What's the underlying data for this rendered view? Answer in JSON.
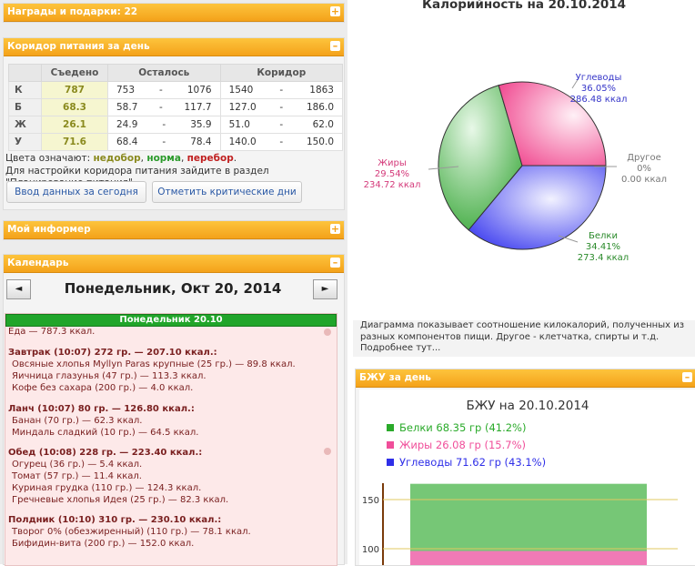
{
  "left": {
    "awards": {
      "title": "Награды и подарки: 22",
      "btn": "+"
    },
    "corridor": {
      "title": "Коридор питания за день",
      "btn": "–",
      "headers": [
        "Съедено",
        "Осталось",
        "Коридор"
      ],
      "rows": [
        {
          "label": "К",
          "eaten": "787",
          "left_min": "753",
          "left_max": "1076",
          "corr_min": "1540",
          "corr_max": "1863"
        },
        {
          "label": "Б",
          "eaten": "68.3",
          "left_min": "58.7",
          "left_max": "117.7",
          "corr_min": "127.0",
          "corr_max": "186.0"
        },
        {
          "label": "Ж",
          "eaten": "26.1",
          "left_min": "24.9",
          "left_max": "35.9",
          "corr_min": "51.0",
          "corr_max": "62.0"
        },
        {
          "label": "У",
          "eaten": "71.6",
          "left_min": "68.4",
          "left_max": "78.4",
          "corr_min": "140.0",
          "corr_max": "150.0"
        }
      ],
      "dash": "-",
      "colors_prefix": "Цвета означают:",
      "under": "недобор",
      "norm": "норма",
      "over": "перебор",
      "note1": "Для настройки коридора питания зайдите в раздел",
      "note2": "\"Планирование питания\".",
      "btn_input": "Ввод данных за сегодня",
      "btn_critical": "Отметить критические дни"
    },
    "informer": {
      "title": "Мой информер",
      "btn": "+"
    },
    "calendar": {
      "title": "Календарь",
      "btn": "–",
      "prev": "◄",
      "next": "►",
      "date": "Понедельник, Окт 20, 2014",
      "day_head": "Понедельник 20.10",
      "food_total": "Еда — 787.3 ккал.",
      "meals": [
        {
          "title": "Завтрак (10:07) 272 гр. — 207.10 ккал.:",
          "items": [
            "Овсяные хлопья Myllyn Paras крупные (25 гр.) — 89.8 ккал.",
            "Яичница глазунья (47 гр.) — 113.3 ккал.",
            "Кофе без сахара (200 гр.) — 4.0 ккал."
          ]
        },
        {
          "title": "Ланч (10:07) 80 гр. — 126.80 ккал.:",
          "items": [
            "Банан (70 гр.) — 62.3 ккал.",
            "Миндаль сладкий (10 гр.) — 64.5 ккал."
          ]
        },
        {
          "title": "Обед (10:08) 228 гр. — 223.40 ккал.:",
          "items": [
            "Огурец (36 гр.) — 5.4 ккал.",
            "Томат (57 гр.) — 11.4 ккал.",
            "Куриная грудка (110 гр.) — 124.3 ккал.",
            "Гречневые хлопья Идея (25 гр.) — 82.3 ккал."
          ]
        },
        {
          "title": "Полдник (10:10) 310 гр. — 230.10 ккал.:",
          "items": [
            "Творог 0% (обезжиренный) (110 гр.) — 78.1 ккал.",
            "Бифидин-вита (200 гр.) — 152.0 ккал."
          ]
        }
      ]
    }
  },
  "right": {
    "pie_desc": [
      "Диаграмма показывает соотношение килокалорий, полученных из",
      "разных компонентов пищи. Другое - клетчатка, спирты и т.д.",
      "Подробнее тут..."
    ],
    "bju_panel": {
      "title": "БЖУ за день",
      "btn": "–"
    }
  },
  "chart_data": [
    {
      "type": "pie",
      "title": "Калорийность на 20.10.2014",
      "slices": [
        {
          "name": "Углеводы",
          "percent": "36.05%",
          "value": "286.48 ккал",
          "share": 36.05,
          "color": "#5b5bf2"
        },
        {
          "name": "Белки",
          "percent": "34.41%",
          "value": "273.4 ккал",
          "share": 34.41,
          "color": "#45b845"
        },
        {
          "name": "Жиры",
          "percent": "29.54%",
          "value": "234.72 ккал",
          "share": 29.54,
          "color": "#f25a9e"
        },
        {
          "name": "Другое",
          "percent": "0%",
          "value": "0.00 ккал",
          "share": 0,
          "color": "#888888"
        }
      ]
    },
    {
      "type": "bar",
      "title": "БЖУ на 20.10.2014",
      "legend": [
        {
          "text": "Белки 68.35 гр (41.2%)",
          "color": "#2aaa2a"
        },
        {
          "text": "Жиры 26.08 гр (15.7%)",
          "color": "#f04e9a"
        },
        {
          "text": "Углеводы 71.62 гр (43.1%)",
          "color": "#2f2fe8"
        }
      ],
      "stack": [
        {
          "name": "Углеводы",
          "value": 71.62
        },
        {
          "name": "Жиры",
          "value": 26.08
        },
        {
          "name": "Белки",
          "value": 68.35
        }
      ],
      "yticks": [
        {
          "value": 150,
          "label": "150"
        },
        {
          "value": 100,
          "label": "100"
        }
      ]
    }
  ]
}
